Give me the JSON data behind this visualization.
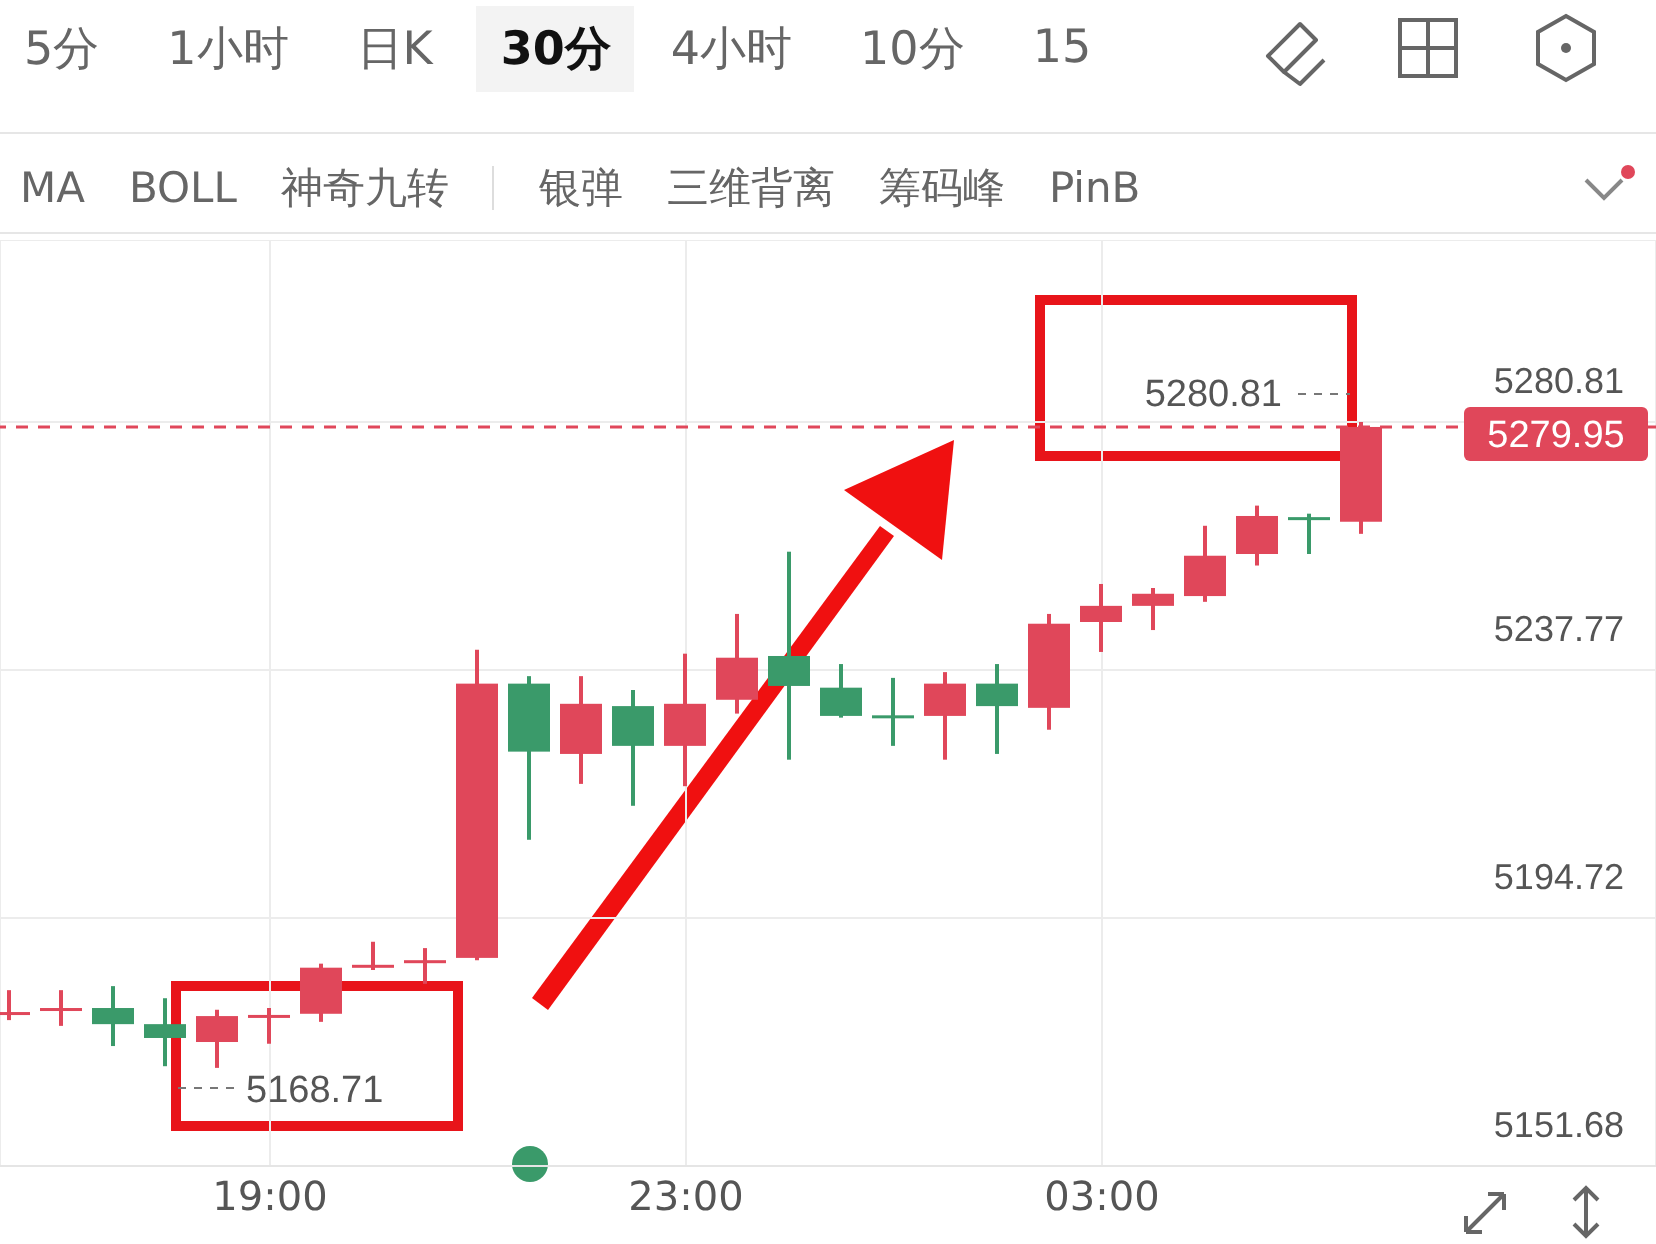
{
  "chart_data": {
    "type": "candlestick",
    "categories": [
      null,
      null,
      null,
      null,
      null,
      "19:00",
      null,
      null,
      null,
      null,
      null,
      null,
      null,
      "23:00",
      null,
      null,
      null,
      null,
      null,
      null,
      null,
      "03:00",
      null,
      null,
      null,
      null,
      null
    ],
    "ohlc": [
      [
        5178.0,
        5182.2,
        5177.0,
        5178.4
      ],
      [
        5178.9,
        5182.2,
        5176.0,
        5179.1
      ],
      [
        5179.1,
        5182.9,
        5172.5,
        5176.3
      ],
      [
        5176.3,
        5180.8,
        5169.0,
        5173.9
      ],
      [
        5173.2,
        5178.8,
        5168.71,
        5177.7
      ],
      [
        5177.5,
        5179.1,
        5172.9,
        5177.9
      ],
      [
        5178.1,
        5186.8,
        5176.7,
        5186.1
      ],
      [
        5186.1,
        5190.6,
        5185.7,
        5186.6
      ],
      [
        5187.0,
        5189.5,
        5183.3,
        5187.4
      ],
      [
        5187.8,
        5241.3,
        5187.4,
        5235.4
      ],
      [
        5235.4,
        5236.7,
        5208.3,
        5223.6
      ],
      [
        5223.2,
        5236.7,
        5218.0,
        5231.9
      ],
      [
        5231.5,
        5234.3,
        5214.2,
        5224.6
      ],
      [
        5224.6,
        5240.6,
        5217.6,
        5231.9
      ],
      [
        5232.6,
        5247.5,
        5230.2,
        5239.9
      ],
      [
        5240.2,
        5258.3,
        5222.2,
        5235.0
      ],
      [
        5234.7,
        5238.8,
        5229.5,
        5229.8
      ],
      [
        5229.9,
        5236.4,
        5224.6,
        5229.7
      ],
      [
        5229.8,
        5237.4,
        5222.2,
        5235.4
      ],
      [
        5235.4,
        5238.8,
        5223.2,
        5231.5
      ],
      [
        5231.2,
        5247.5,
        5227.4,
        5245.8
      ],
      [
        5246.1,
        5252.7,
        5240.9,
        5248.9
      ],
      [
        5248.9,
        5252.0,
        5244.7,
        5251.0
      ],
      [
        5250.6,
        5262.8,
        5249.6,
        5257.6
      ],
      [
        5257.9,
        5266.3,
        5255.9,
        5264.5
      ],
      [
        5264.3,
        5264.9,
        5257.9,
        5264.0
      ],
      [
        5263.5,
        5280.81,
        5261.4,
        5279.95
      ]
    ],
    "colors": [
      "#e0475a",
      "#e0475a",
      "#3a9a6a",
      "#3a9a6a",
      "#e0475a",
      "#e0475a",
      "#e0475a",
      "#e0475a",
      "#e0475a",
      "#e0475a",
      "#3a9a6a",
      "#e0475a",
      "#3a9a6a",
      "#e0475a",
      "#e0475a",
      "#3a9a6a",
      "#3a9a6a",
      "#3a9a6a",
      "#e0475a",
      "#3a9a6a",
      "#e0475a",
      "#e0475a",
      "#e0475a",
      "#e0475a",
      "#e0475a",
      "#3a9a6a",
      "#e0475a"
    ],
    "ylim": [
      5151.68,
      5312.4
    ],
    "yticks": [
      5151.68,
      5194.72,
      5237.77,
      5280.81
    ],
    "grid": true,
    "ref_lines": [
      {
        "axis": "y",
        "value": 5279.95,
        "label": "5279.95",
        "color": "#e0475a",
        "line_style": "dashed"
      }
    ],
    "annotations": [
      "5168.71",
      "5280.81",
      "5分",
      "1小时",
      "日K",
      "30分",
      "4小时",
      "10分",
      "15",
      "MA",
      "BOLL",
      "神奇九转",
      "银弹",
      "三维背离",
      "筹码峰",
      "PinB"
    ]
  }
}
